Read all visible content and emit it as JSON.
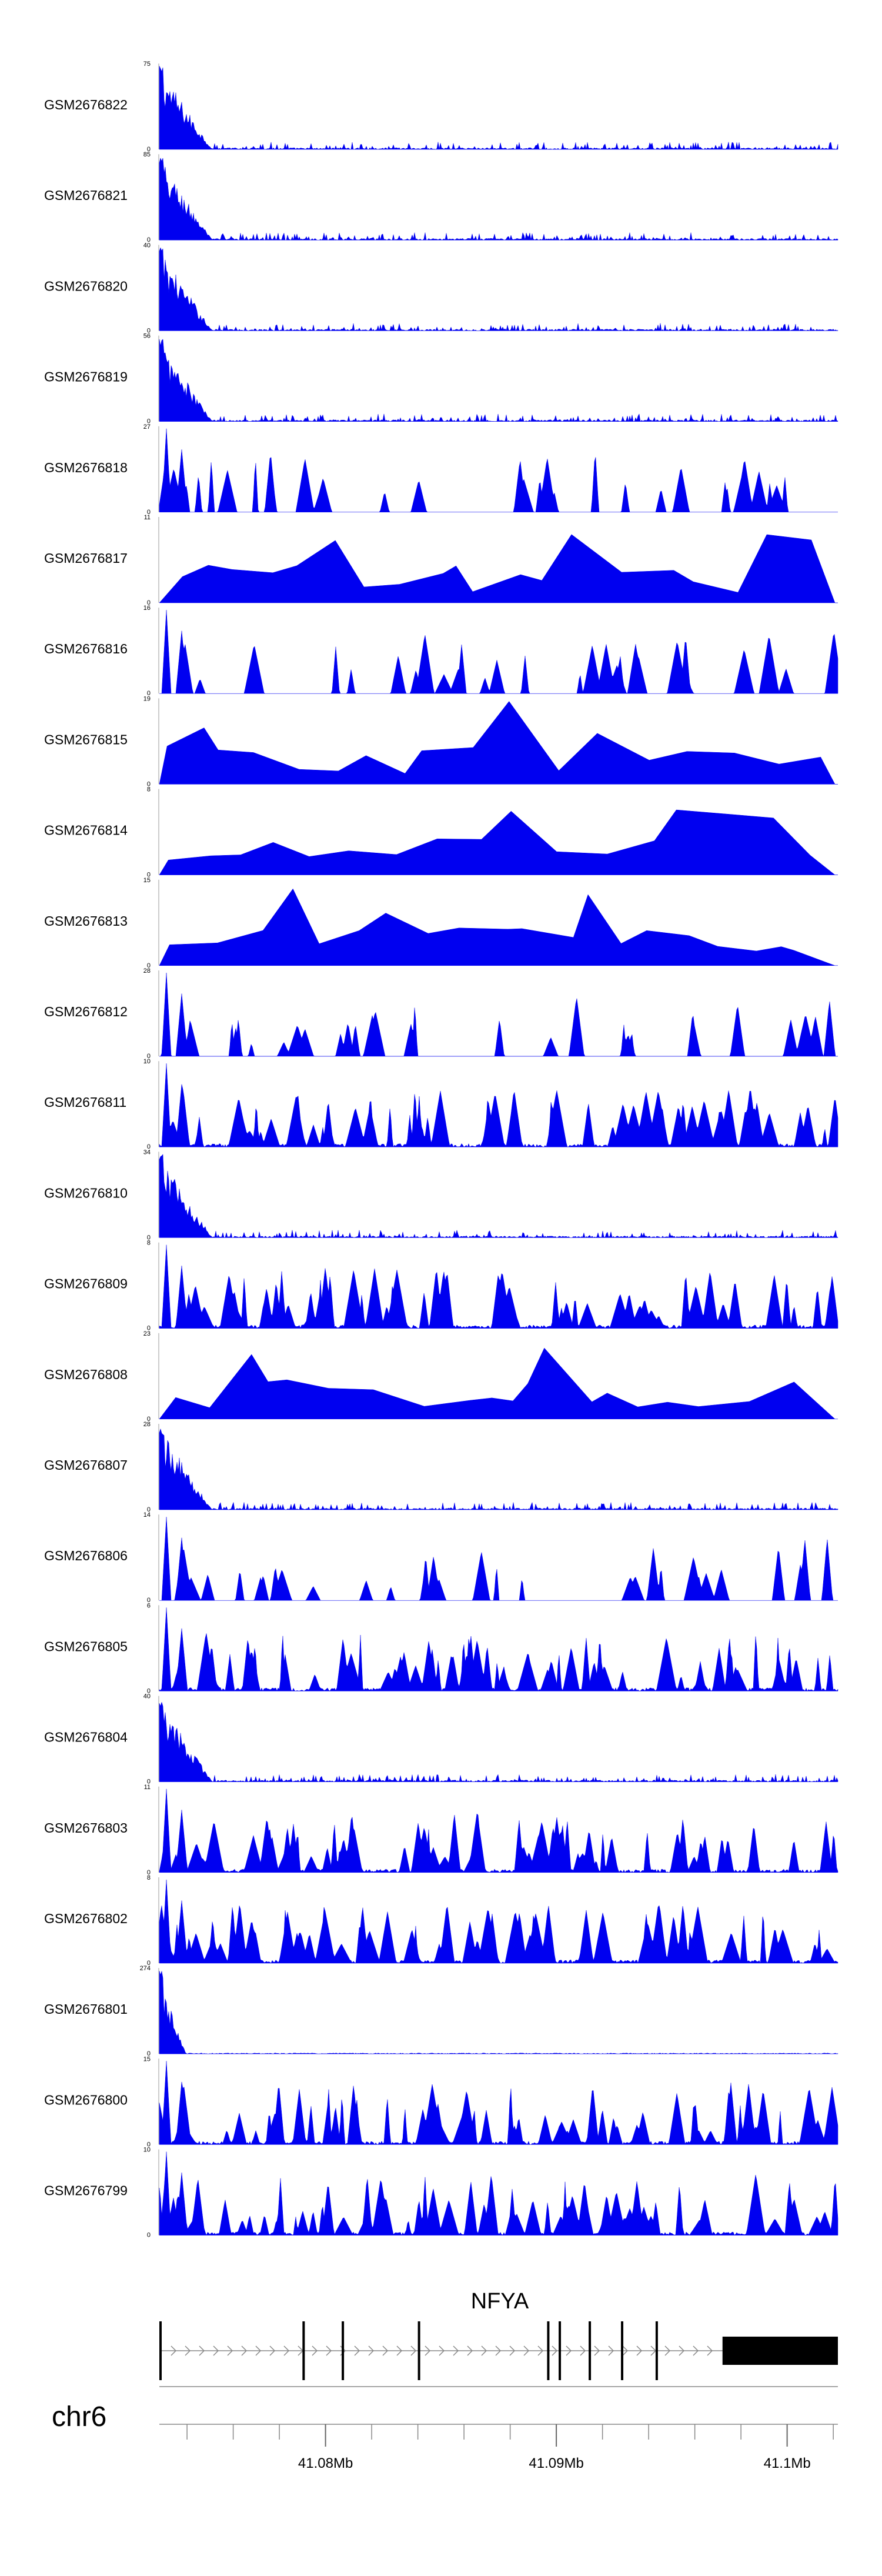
{
  "chart_data": {
    "type": "area",
    "title": "",
    "region": {
      "chromosome": "chr6",
      "start_mb": 41.0728,
      "end_mb": 41.1022
    },
    "fill_color": "#0000f0",
    "tracks": [
      {
        "sample": "GSM2676822",
        "ymax": 75,
        "pattern": "early"
      },
      {
        "sample": "GSM2676821",
        "ymax": 85,
        "pattern": "early"
      },
      {
        "sample": "GSM2676820",
        "ymax": 40,
        "pattern": "early"
      },
      {
        "sample": "GSM2676819",
        "ymax": 56,
        "pattern": "early"
      },
      {
        "sample": "GSM2676818",
        "ymax": 27,
        "pattern": "sparse"
      },
      {
        "sample": "GSM2676817",
        "ymax": 11,
        "pattern": "triangle"
      },
      {
        "sample": "GSM2676816",
        "ymax": 16,
        "pattern": "sparse"
      },
      {
        "sample": "GSM2676815",
        "ymax": 19,
        "pattern": "triangle"
      },
      {
        "sample": "GSM2676814",
        "ymax": 8,
        "pattern": "triangle"
      },
      {
        "sample": "GSM2676813",
        "ymax": 15,
        "pattern": "triangle"
      },
      {
        "sample": "GSM2676812",
        "ymax": 28,
        "pattern": "sparse"
      },
      {
        "sample": "GSM2676811",
        "ymax": 10,
        "pattern": "dense"
      },
      {
        "sample": "GSM2676810",
        "ymax": 34,
        "pattern": "early"
      },
      {
        "sample": "GSM2676809",
        "ymax": 8,
        "pattern": "dense"
      },
      {
        "sample": "GSM2676808",
        "ymax": 23,
        "pattern": "triangle"
      },
      {
        "sample": "GSM2676807",
        "ymax": 28,
        "pattern": "early"
      },
      {
        "sample": "GSM2676806",
        "ymax": 14,
        "pattern": "sparse"
      },
      {
        "sample": "GSM2676805",
        "ymax": 6,
        "pattern": "dense"
      },
      {
        "sample": "GSM2676804",
        "ymax": 40,
        "pattern": "early"
      },
      {
        "sample": "GSM2676803",
        "ymax": 11,
        "pattern": "dense"
      },
      {
        "sample": "GSM2676802",
        "ymax": 8,
        "pattern": "dense"
      },
      {
        "sample": "GSM2676801",
        "ymax": 274,
        "pattern": "spike"
      },
      {
        "sample": "GSM2676800",
        "ymax": 15,
        "pattern": "dense"
      },
      {
        "sample": "GSM2676799",
        "ymax": 10,
        "pattern": "dense"
      }
    ],
    "ymin_label": "0",
    "gene": {
      "name": "NFYA",
      "strand": "+",
      "exons_mb": [
        [
          41.0728,
          41.0729
        ],
        [
          41.079,
          41.0791
        ],
        [
          41.0807,
          41.0808
        ],
        [
          41.084,
          41.0841
        ],
        [
          41.0896,
          41.0897
        ],
        [
          41.0901,
          41.0902
        ],
        [
          41.0914,
          41.0915
        ],
        [
          41.0928,
          41.0929
        ],
        [
          41.0943,
          41.0944
        ],
        [
          41.0972,
          41.1022
        ]
      ]
    },
    "axis": {
      "label": "chr6",
      "tick_labels": [
        "41.08Mb",
        "41.09Mb",
        "41.1Mb"
      ],
      "tick_values_mb": [
        41.08,
        41.09,
        41.1
      ],
      "minor_tick_step_mb": 0.002
    }
  }
}
